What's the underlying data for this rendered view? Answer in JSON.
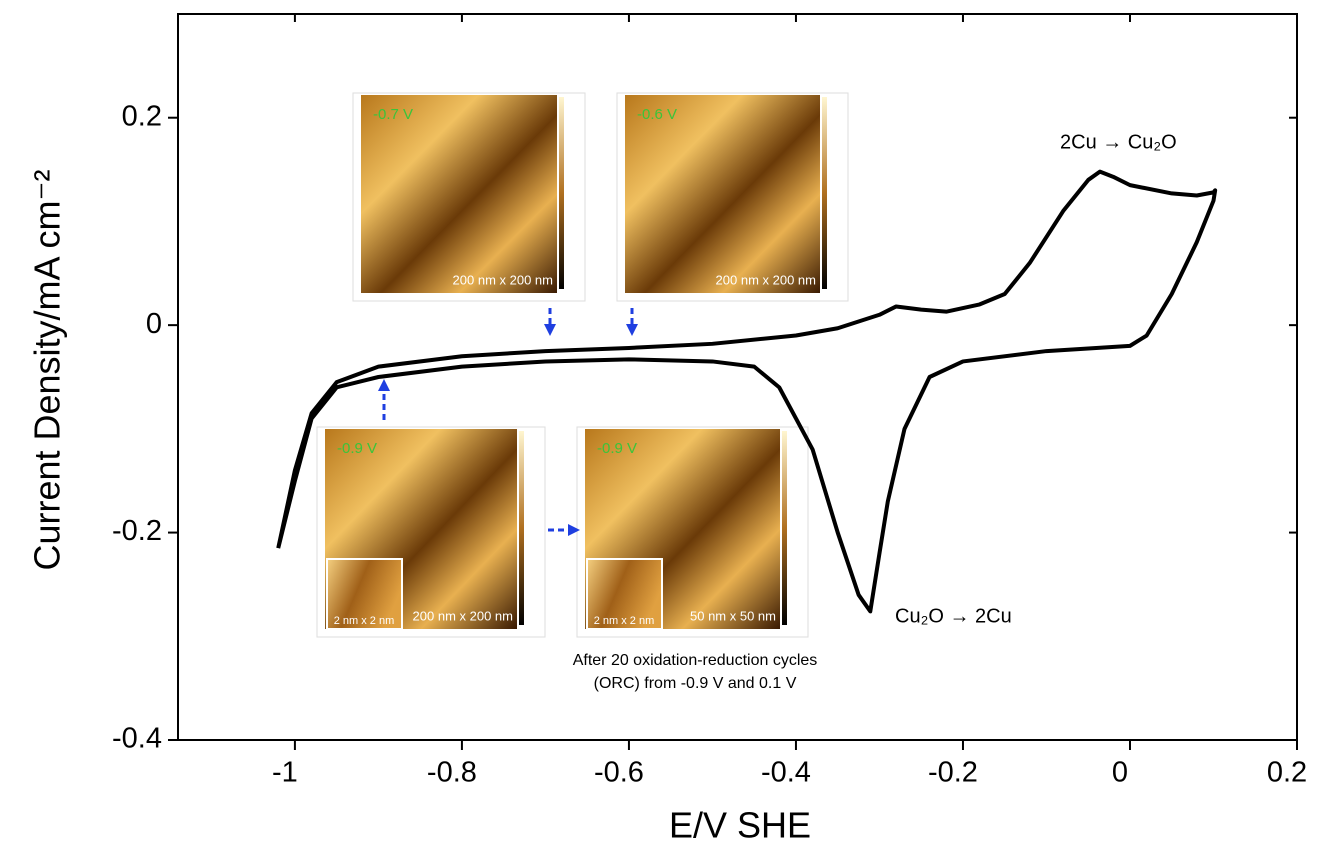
{
  "chart_data": {
    "type": "line",
    "x_label": "E/V SHE",
    "y_label": "Current Density/mA cm⁻²",
    "xlim": [
      -1.14,
      0.2
    ],
    "xticks": [
      -1.0,
      -0.8,
      -0.6,
      -0.4,
      -0.2,
      0.0,
      0.2
    ],
    "ylim": [
      -0.4,
      0.3
    ],
    "yticks": [
      -0.4,
      -0.2,
      0.0,
      0.2
    ],
    "series": [
      {
        "color": "#000000",
        "x": [
          -1.02,
          -1.0,
          -0.98,
          -0.95,
          -0.9,
          -0.8,
          -0.7,
          -0.6,
          -0.5,
          -0.4,
          -0.35,
          -0.3,
          -0.28,
          -0.25,
          -0.22,
          -0.18,
          -0.15,
          -0.12,
          -0.08,
          -0.05,
          -0.036,
          -0.02,
          0.0,
          0.05,
          0.08,
          0.1,
          0.102,
          0.1,
          0.08,
          0.05,
          0.02,
          0.0,
          -0.1,
          -0.2,
          -0.24,
          -0.27,
          -0.29,
          -0.3,
          -0.311,
          -0.325,
          -0.35,
          -0.38,
          -0.4,
          -0.42,
          -0.45,
          -0.5,
          -0.6,
          -0.7,
          -0.8,
          -0.9,
          -0.95,
          -0.98,
          -1.0,
          -1.02
        ],
        "values": [
          -0.215,
          -0.14,
          -0.085,
          -0.055,
          -0.04,
          -0.03,
          -0.025,
          -0.022,
          -0.018,
          -0.01,
          -0.003,
          0.01,
          0.018,
          0.015,
          0.013,
          0.02,
          0.03,
          0.06,
          0.11,
          0.14,
          0.148,
          0.143,
          0.135,
          0.127,
          0.125,
          0.128,
          0.13,
          0.12,
          0.08,
          0.03,
          -0.01,
          -0.02,
          -0.025,
          -0.035,
          -0.05,
          -0.1,
          -0.17,
          -0.22,
          -0.276,
          -0.26,
          -0.2,
          -0.12,
          -0.09,
          -0.06,
          -0.04,
          -0.035,
          -0.033,
          -0.035,
          -0.04,
          -0.05,
          -0.06,
          -0.09,
          -0.15,
          -0.215
        ]
      }
    ],
    "annotations": [
      "2Cu → Cu₂O",
      "Cu₂O → 2Cu"
    ],
    "insets": [
      {
        "potential": "-0.7 V",
        "scale": "200 nm x 200 nm"
      },
      {
        "potential": "-0.6 V",
        "scale": "200 nm x 200 nm"
      },
      {
        "potential": "-0.9 V",
        "scale": "200 nm x 200 nm",
        "zoom": "2 nm x 2 nm"
      },
      {
        "potential": "-0.9 V",
        "scale": "50 nm x 50 nm",
        "zoom": "2 nm x 2 nm"
      }
    ],
    "caption": [
      "After 20 oxidation-reduction cycles",
      "(ORC) from -0.9 V and 0.1 V"
    ]
  }
}
